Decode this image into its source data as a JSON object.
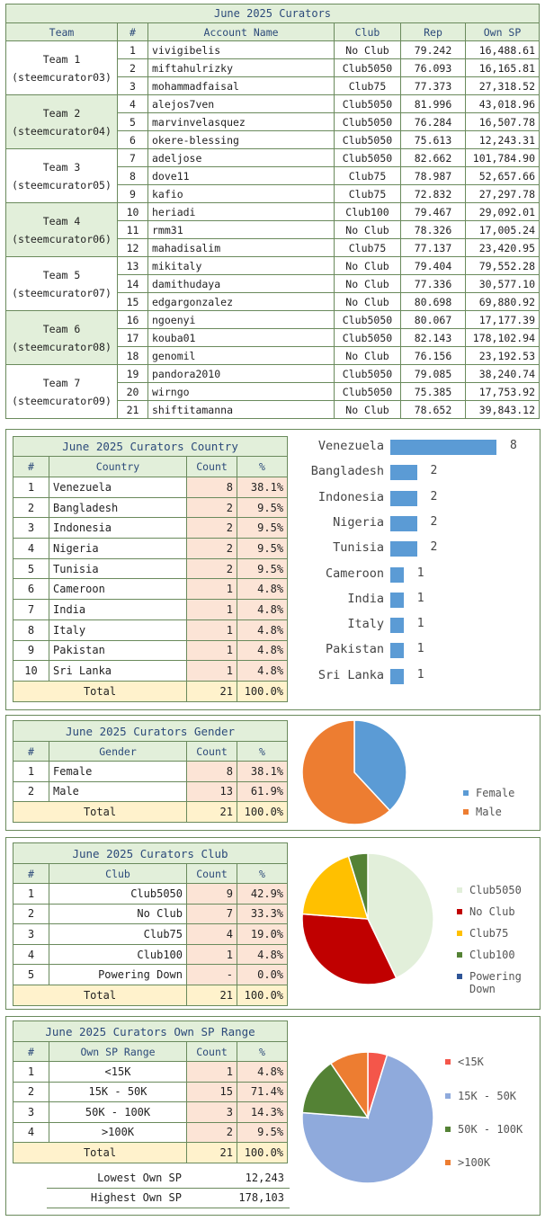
{
  "curators": {
    "title": "June 2025 Curators",
    "headers": [
      "Team",
      "#",
      "Account Name",
      "Club",
      "Rep",
      "Own SP"
    ],
    "teams": [
      {
        "name": "Team 1",
        "account": "(steemcurator03)",
        "rows": [
          {
            "n": "1",
            "acct": "vivigibelis",
            "club": "No Club",
            "rep": "79.242",
            "sp": "16,488.61"
          },
          {
            "n": "2",
            "acct": "miftahulrizky",
            "club": "Club5050",
            "rep": "76.093",
            "sp": "16,165.81"
          },
          {
            "n": "3",
            "acct": "mohammadfaisal",
            "club": "Club75",
            "rep": "77.373",
            "sp": "27,318.52"
          }
        ]
      },
      {
        "name": "Team 2",
        "account": "(steemcurator04)",
        "rows": [
          {
            "n": "4",
            "acct": "alejos7ven",
            "club": "Club5050",
            "rep": "81.996",
            "sp": "43,018.96"
          },
          {
            "n": "5",
            "acct": "marvinvelasquez",
            "club": "Club5050",
            "rep": "76.284",
            "sp": "16,507.78"
          },
          {
            "n": "6",
            "acct": "okere-blessing",
            "club": "Club5050",
            "rep": "75.613",
            "sp": "12,243.31"
          }
        ]
      },
      {
        "name": "Team 3",
        "account": "(steemcurator05)",
        "rows": [
          {
            "n": "7",
            "acct": "adeljose",
            "club": "Club5050",
            "rep": "82.662",
            "sp": "101,784.90"
          },
          {
            "n": "8",
            "acct": "dove11",
            "club": "Club75",
            "rep": "78.987",
            "sp": "52,657.66"
          },
          {
            "n": "9",
            "acct": "kafio",
            "club": "Club75",
            "rep": "72.832",
            "sp": "27,297.78"
          }
        ]
      },
      {
        "name": "Team 4",
        "account": "(steemcurator06)",
        "rows": [
          {
            "n": "10",
            "acct": "heriadi",
            "club": "Club100",
            "rep": "79.467",
            "sp": "29,092.01"
          },
          {
            "n": "11",
            "acct": "rmm31",
            "club": "No Club",
            "rep": "78.326",
            "sp": "17,005.24"
          },
          {
            "n": "12",
            "acct": "mahadisalim",
            "club": "Club75",
            "rep": "77.137",
            "sp": "23,420.95"
          }
        ]
      },
      {
        "name": "Team 5",
        "account": "(steemcurator07)",
        "rows": [
          {
            "n": "13",
            "acct": "mikitaly",
            "club": "No Club",
            "rep": "79.404",
            "sp": "79,552.28"
          },
          {
            "n": "14",
            "acct": "damithudaya",
            "club": "No Club",
            "rep": "77.336",
            "sp": "30,577.10"
          },
          {
            "n": "15",
            "acct": "edgargonzalez",
            "club": "No Club",
            "rep": "80.698",
            "sp": "69,880.92"
          }
        ]
      },
      {
        "name": "Team 6",
        "account": "(steemcurator08)",
        "rows": [
          {
            "n": "16",
            "acct": "ngoenyi",
            "club": "Club5050",
            "rep": "80.067",
            "sp": "17,177.39"
          },
          {
            "n": "17",
            "acct": "kouba01",
            "club": "Club5050",
            "rep": "82.143",
            "sp": "178,102.94"
          },
          {
            "n": "18",
            "acct": "genomil",
            "club": "No Club",
            "rep": "76.156",
            "sp": "23,192.53"
          }
        ]
      },
      {
        "name": "Team 7",
        "account": "(steemcurator09)",
        "rows": [
          {
            "n": "19",
            "acct": "pandora2010",
            "club": "Club5050",
            "rep": "79.085",
            "sp": "38,240.74"
          },
          {
            "n": "20",
            "acct": "wirngo",
            "club": "Club5050",
            "rep": "75.385",
            "sp": "17,753.92"
          },
          {
            "n": "21",
            "acct": "shiftitamanna",
            "club": "No Club",
            "rep": "78.652",
            "sp": "39,843.12"
          }
        ]
      }
    ]
  },
  "country": {
    "title": "June 2025 Curators Country",
    "headers": [
      "#",
      "Country",
      "Count",
      "%"
    ],
    "rows": [
      {
        "n": "1",
        "label": "Venezuela",
        "count": "8",
        "pct": "38.1%"
      },
      {
        "n": "2",
        "label": "Bangladesh",
        "count": "2",
        "pct": "9.5%"
      },
      {
        "n": "3",
        "label": "Indonesia",
        "count": "2",
        "pct": "9.5%"
      },
      {
        "n": "4",
        "label": "Nigeria",
        "count": "2",
        "pct": "9.5%"
      },
      {
        "n": "5",
        "label": "Tunisia",
        "count": "2",
        "pct": "9.5%"
      },
      {
        "n": "6",
        "label": "Cameroon",
        "count": "1",
        "pct": "4.8%"
      },
      {
        "n": "7",
        "label": "India",
        "count": "1",
        "pct": "4.8%"
      },
      {
        "n": "8",
        "label": "Italy",
        "count": "1",
        "pct": "4.8%"
      },
      {
        "n": "9",
        "label": "Pakistan",
        "count": "1",
        "pct": "4.8%"
      },
      {
        "n": "10",
        "label": "Sri Lanka",
        "count": "1",
        "pct": "4.8%"
      }
    ],
    "total": {
      "label": "Total",
      "count": "21",
      "pct": "100.0%"
    }
  },
  "gender": {
    "title": "June 2025 Curators Gender",
    "headers": [
      "#",
      "Gender",
      "Count",
      "%"
    ],
    "rows": [
      {
        "n": "1",
        "label": "Female",
        "count": "8",
        "pct": "38.1%"
      },
      {
        "n": "2",
        "label": "Male",
        "count": "13",
        "pct": "61.9%"
      }
    ],
    "total": {
      "label": "Total",
      "count": "21",
      "pct": "100.0%"
    }
  },
  "club": {
    "title": "June 2025 Curators Club",
    "headers": [
      "#",
      "Club",
      "Count",
      "%"
    ],
    "rows": [
      {
        "n": "1",
        "label": "Club5050",
        "count": "9",
        "pct": "42.9%"
      },
      {
        "n": "2",
        "label": "No Club",
        "count": "7",
        "pct": "33.3%"
      },
      {
        "n": "3",
        "label": "Club75",
        "count": "4",
        "pct": "19.0%"
      },
      {
        "n": "4",
        "label": "Club100",
        "count": "1",
        "pct": "4.8%"
      },
      {
        "n": "5",
        "label": "Powering Down",
        "count": "-",
        "pct": "0.0%"
      }
    ],
    "total": {
      "label": "Total",
      "count": "21",
      "pct": "100.0%"
    }
  },
  "sp_range": {
    "title": "June 2025 Curators Own SP Range",
    "headers": [
      "#",
      "Own SP Range",
      "Count",
      "%"
    ],
    "rows": [
      {
        "n": "1",
        "label": "<15K",
        "count": "1",
        "pct": "4.8%"
      },
      {
        "n": "2",
        "label": "15K - 50K",
        "count": "15",
        "pct": "71.4%"
      },
      {
        "n": "3",
        "label": "50K - 100K",
        "count": "3",
        "pct": "14.3%"
      },
      {
        "n": "4",
        "label": ">100K",
        "count": "2",
        "pct": "9.5%"
      }
    ],
    "total": {
      "label": "Total",
      "count": "21",
      "pct": "100.0%"
    },
    "lowest_label": "Lowest Own SP",
    "lowest_value": "12,243",
    "highest_label": "Highest Own SP",
    "highest_value": "178,103"
  },
  "chart_data": [
    {
      "type": "bar",
      "orientation": "horizontal",
      "categories": [
        "Venezuela",
        "Bangladesh",
        "Indonesia",
        "Nigeria",
        "Tunisia",
        "Cameroon",
        "India",
        "Italy",
        "Pakistan",
        "Sri Lanka"
      ],
      "values": [
        8,
        2,
        2,
        2,
        2,
        1,
        1,
        1,
        1,
        1
      ],
      "xlim": [
        0,
        8
      ],
      "color": "#5b9bd5"
    },
    {
      "type": "pie",
      "labels": [
        "Female",
        "Male"
      ],
      "values": [
        8,
        13
      ],
      "colors": [
        "#5b9bd5",
        "#ed7d31"
      ],
      "legend": "right"
    },
    {
      "type": "pie",
      "labels": [
        "Club5050",
        "No Club",
        "Club75",
        "Club100",
        "Powering Down"
      ],
      "values": [
        9,
        7,
        4,
        1,
        0
      ],
      "colors": [
        "#e2efda",
        "#c00000",
        "#ffc000",
        "#548235",
        "#2f5597"
      ],
      "legend": "right"
    },
    {
      "type": "pie",
      "labels": [
        "<15K",
        "15K - 50K",
        "50K - 100K",
        ">100K"
      ],
      "values": [
        1,
        15,
        3,
        2
      ],
      "colors": [
        "#f4564a",
        "#8faadc",
        "#548235",
        "#ed7d31"
      ],
      "legend": "right"
    }
  ]
}
